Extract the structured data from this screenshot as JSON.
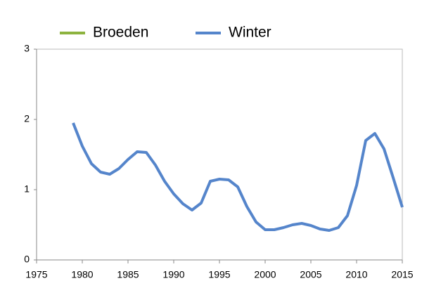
{
  "chart_data": {
    "type": "line",
    "x": [
      1979,
      1980,
      1981,
      1982,
      1983,
      1984,
      1985,
      1986,
      1987,
      1988,
      1989,
      1990,
      1991,
      1992,
      1993,
      1994,
      1995,
      1996,
      1997,
      1998,
      1999,
      2000,
      2001,
      2002,
      2003,
      2004,
      2005,
      2006,
      2007,
      2008,
      2009,
      2010,
      2011,
      2012,
      2013,
      2014,
      2015
    ],
    "series": [
      {
        "name": "Broeden",
        "color": "#8db33f",
        "values": [
          null,
          null,
          null,
          null,
          null,
          null,
          null,
          null,
          null,
          null,
          null,
          null,
          null,
          null,
          null,
          null,
          null,
          null,
          null,
          null,
          null,
          null,
          null,
          null,
          null,
          null,
          null,
          null,
          null,
          null,
          null,
          null,
          null,
          null,
          null,
          null,
          null
        ]
      },
      {
        "name": "Winter",
        "color": "#5585cb",
        "values": [
          1.95,
          1.62,
          1.37,
          1.25,
          1.22,
          1.3,
          1.43,
          1.54,
          1.53,
          1.35,
          1.12,
          0.94,
          0.8,
          0.71,
          0.81,
          1.12,
          1.15,
          1.14,
          1.04,
          0.76,
          0.54,
          0.43,
          0.43,
          0.46,
          0.5,
          0.52,
          0.49,
          0.44,
          0.42,
          0.46,
          0.63,
          1.06,
          1.7,
          1.8,
          1.58,
          1.17,
          0.75
        ]
      }
    ],
    "xlim": [
      1975,
      2015
    ],
    "xticks": [
      1975,
      1980,
      1985,
      1990,
      1995,
      2000,
      2005,
      2010,
      2015
    ],
    "ylim": [
      0,
      3
    ],
    "yticks": [
      0,
      1,
      2,
      3
    ],
    "grid": false
  }
}
